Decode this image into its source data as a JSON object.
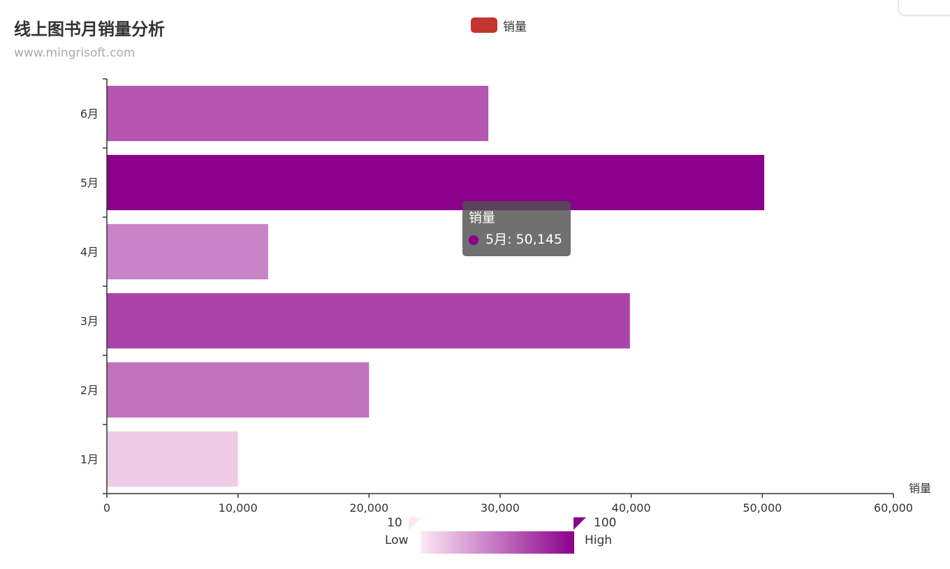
{
  "chart_data": {
    "type": "bar",
    "orientation": "horizontal",
    "title": "线上图书月销量分析",
    "subtitle": "www.mingrisoft.com",
    "categories": [
      "1月",
      "2月",
      "3月",
      "4月",
      "5月",
      "6月"
    ],
    "series": [
      {
        "name": "销量",
        "values": [
          10000,
          20000,
          39900,
          12300,
          50145,
          29100
        ]
      }
    ],
    "xlabel": "销量",
    "xlim": [
      0,
      60000
    ],
    "xticks": [
      0,
      10000,
      20000,
      30000,
      40000,
      50000,
      60000
    ],
    "xtick_labels": [
      "0",
      "10,000",
      "20,000",
      "30,000",
      "40,000",
      "50,000",
      "60,000"
    ],
    "grid": false,
    "legend": {
      "position": "top-center",
      "label": "销量",
      "color": "#c23531"
    },
    "bar_colors": [
      "#eecce5",
      "#c073bd",
      "#ab43a9",
      "#c884c6",
      "#8b008b",
      "#b456b2"
    ],
    "tooltip": {
      "series": "销量",
      "text": "5月: 50,145",
      "color": "#8b008b"
    },
    "visual_map": {
      "min": "10",
      "max": "100",
      "low_text": "Low",
      "high_text": "High",
      "color_low": "#fde8f5",
      "color_high": "#8b008b"
    }
  }
}
